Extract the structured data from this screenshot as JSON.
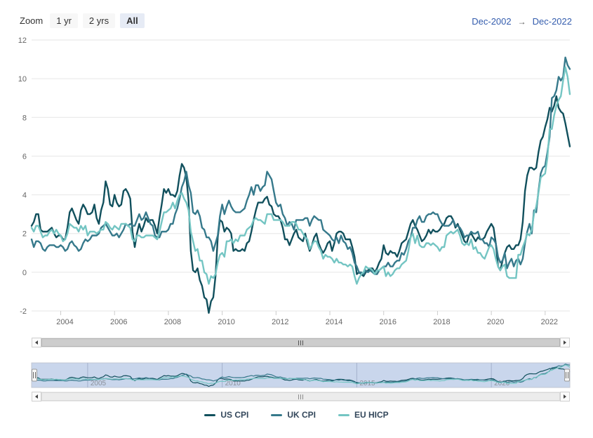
{
  "range_selector": {
    "zoom_label": "Zoom",
    "buttons": [
      {
        "label": "1 yr",
        "selected": false
      },
      {
        "label": "2 yrs",
        "selected": false
      },
      {
        "label": "All",
        "selected": true
      }
    ]
  },
  "date_range": {
    "from": "Dec-2002",
    "arrow": "→",
    "to": "Dec-2022"
  },
  "colors": {
    "us_cpi": "#11505d",
    "uk_cpi": "#36798b",
    "eu_hicp": "#74c5c3",
    "selected_button_bg": "#e6ebf5",
    "button_bg": "#f7f7f7",
    "date_link": "#335cad",
    "gridline": "#e6e6e6",
    "axis_label": "#666666",
    "navigator_mask": "#c9d6ec",
    "legend_text": "#33475b"
  },
  "chart_data": {
    "type": "line",
    "title": "",
    "xlabel": "",
    "ylabel": "",
    "x_unit": "month",
    "x_start": "Dec-2002",
    "x_end": "Dec-2022",
    "x_range_years": [
      2002.917,
      2022.917
    ],
    "ylim": [
      -2,
      12
    ],
    "yticks": [
      -2,
      0,
      2,
      4,
      6,
      8,
      10,
      12
    ],
    "xticks": [
      2004,
      2006,
      2008,
      2010,
      2012,
      2014,
      2016,
      2018,
      2020,
      2022
    ],
    "grid": "horizontal",
    "legend_position": "bottom-center",
    "navigator": {
      "xticks": [
        2005,
        2010,
        2015,
        2020
      ],
      "vmin": -2.3,
      "vmax": 11.4
    },
    "series": [
      {
        "name": "US CPI",
        "color": "#11505d",
        "values": [
          2.4,
          2.6,
          3.0,
          3.0,
          2.2,
          2.1,
          2.1,
          2.1,
          2.2,
          2.3,
          2.0,
          1.8,
          1.9,
          1.9,
          1.7,
          1.7,
          2.3,
          3.1,
          3.3,
          3.0,
          2.7,
          2.5,
          3.2,
          3.5,
          3.3,
          3.0,
          3.0,
          3.1,
          3.5,
          2.8,
          2.5,
          3.2,
          3.6,
          4.7,
          4.3,
          3.5,
          3.4,
          4.0,
          3.6,
          3.4,
          3.5,
          4.2,
          4.3,
          4.1,
          3.8,
          2.1,
          1.3,
          2.0,
          2.5,
          2.1,
          2.4,
          2.8,
          2.6,
          2.7,
          2.7,
          2.4,
          2.0,
          2.8,
          3.5,
          4.3,
          4.1,
          4.3,
          4.0,
          4.0,
          3.9,
          4.2,
          5.0,
          5.6,
          5.4,
          4.9,
          3.7,
          1.1,
          0.1,
          0.0,
          0.2,
          -0.4,
          -0.7,
          -1.3,
          -1.4,
          -2.1,
          -1.5,
          -1.3,
          -0.2,
          1.8,
          2.7,
          2.6,
          2.1,
          2.3,
          2.2,
          2.0,
          1.1,
          1.2,
          1.1,
          1.1,
          1.2,
          1.1,
          1.5,
          1.6,
          2.1,
          2.7,
          3.2,
          3.6,
          3.6,
          3.6,
          3.8,
          3.9,
          3.5,
          3.4,
          3.0,
          2.9,
          2.9,
          2.7,
          2.3,
          1.7,
          1.7,
          1.4,
          1.7,
          2.0,
          2.2,
          1.8,
          1.7,
          1.6,
          2.0,
          1.5,
          1.1,
          1.4,
          1.8,
          2.0,
          1.5,
          1.2,
          1.0,
          1.2,
          1.5,
          1.6,
          1.1,
          1.5,
          2.0,
          2.1,
          2.1,
          2.0,
          1.7,
          1.7,
          1.7,
          1.3,
          0.8,
          -0.1,
          0.0,
          -0.1,
          -0.2,
          0.0,
          0.1,
          0.2,
          0.2,
          0.0,
          0.2,
          0.5,
          0.7,
          1.4,
          1.0,
          0.9,
          1.1,
          1.0,
          1.0,
          0.8,
          1.1,
          1.5,
          1.6,
          1.7,
          2.1,
          2.5,
          2.7,
          2.4,
          2.2,
          1.9,
          1.6,
          1.7,
          1.9,
          2.2,
          2.0,
          2.2,
          2.1,
          2.1,
          2.2,
          2.4,
          2.5,
          2.8,
          2.9,
          2.9,
          2.7,
          2.3,
          2.5,
          2.2,
          1.9,
          1.6,
          1.5,
          1.9,
          2.0,
          1.8,
          1.6,
          1.8,
          1.7,
          1.7,
          1.8,
          2.1,
          2.3,
          2.5,
          2.3,
          1.5,
          0.3,
          0.1,
          0.6,
          1.0,
          1.3,
          1.4,
          1.2,
          1.2,
          1.4,
          1.4,
          1.7,
          2.6,
          4.2,
          5.0,
          5.4,
          5.4,
          5.3,
          5.4,
          6.2,
          6.8,
          7.0,
          7.5,
          7.9,
          8.5,
          8.3,
          8.6,
          9.1,
          8.5,
          8.3,
          8.2,
          7.7,
          7.1,
          6.5
        ]
      },
      {
        "name": "UK CPI",
        "color": "#36798b",
        "values": [
          1.7,
          1.3,
          1.6,
          1.6,
          1.5,
          1.2,
          1.1,
          1.3,
          1.4,
          1.4,
          1.4,
          1.3,
          1.3,
          1.4,
          1.3,
          1.1,
          1.2,
          1.5,
          1.6,
          1.4,
          1.3,
          1.1,
          1.2,
          1.5,
          1.7,
          1.6,
          1.7,
          1.9,
          1.9,
          1.9,
          2.0,
          2.3,
          2.4,
          2.5,
          2.3,
          2.1,
          1.9,
          1.9,
          2.0,
          1.8,
          2.0,
          2.2,
          2.5,
          2.4,
          2.5,
          2.4,
          2.4,
          2.7,
          3.0,
          2.7,
          2.8,
          3.1,
          2.8,
          2.5,
          2.4,
          1.9,
          1.8,
          1.8,
          2.1,
          2.1,
          2.1,
          2.2,
          2.5,
          2.5,
          3.0,
          3.3,
          3.8,
          4.4,
          4.7,
          5.2,
          4.5,
          4.1,
          3.1,
          3.0,
          3.2,
          2.9,
          2.3,
          2.2,
          1.8,
          1.8,
          1.6,
          1.1,
          1.5,
          1.9,
          2.9,
          3.5,
          3.0,
          3.4,
          3.7,
          3.4,
          3.2,
          3.1,
          3.1,
          3.1,
          3.2,
          3.3,
          3.7,
          4.0,
          4.4,
          4.0,
          4.5,
          4.5,
          4.2,
          4.4,
          4.5,
          5.2,
          5.0,
          4.8,
          4.2,
          3.6,
          3.4,
          3.5,
          3.0,
          2.8,
          2.4,
          2.6,
          2.5,
          2.2,
          2.7,
          2.7,
          2.7,
          2.7,
          2.8,
          2.8,
          2.4,
          2.7,
          2.9,
          2.8,
          2.7,
          2.7,
          2.2,
          2.1,
          2.0,
          1.9,
          1.7,
          1.6,
          1.8,
          1.5,
          1.9,
          1.6,
          1.5,
          1.2,
          1.3,
          1.0,
          0.5,
          0.3,
          0.0,
          0.0,
          -0.1,
          0.1,
          0.0,
          0.1,
          0.0,
          -0.1,
          -0.1,
          0.1,
          0.2,
          0.3,
          0.3,
          0.5,
          0.3,
          0.3,
          0.5,
          0.6,
          0.6,
          1.0,
          0.9,
          1.2,
          1.6,
          1.8,
          2.3,
          2.3,
          2.7,
          2.9,
          2.6,
          2.6,
          2.9,
          3.0,
          3.0,
          3.1,
          3.0,
          3.0,
          2.7,
          2.5,
          2.4,
          2.4,
          2.4,
          2.5,
          2.7,
          2.4,
          2.4,
          2.3,
          2.1,
          1.8,
          1.9,
          1.9,
          2.1,
          2.0,
          2.0,
          2.1,
          1.7,
          1.7,
          1.5,
          1.5,
          1.3,
          1.8,
          1.7,
          1.5,
          0.8,
          0.5,
          0.6,
          1.0,
          0.2,
          0.5,
          0.7,
          0.3,
          0.6,
          0.7,
          0.4,
          0.7,
          1.5,
          2.1,
          2.5,
          2.0,
          3.2,
          3.1,
          4.2,
          5.1,
          5.4,
          5.5,
          6.2,
          7.0,
          9.0,
          9.1,
          9.4,
          10.1,
          9.9,
          10.1,
          11.1,
          10.7,
          10.5
        ]
      },
      {
        "name": "EU HICP",
        "color": "#74c5c3",
        "values": [
          2.3,
          2.1,
          2.4,
          2.4,
          2.1,
          1.8,
          1.9,
          1.9,
          2.1,
          2.2,
          2.0,
          2.2,
          2.0,
          1.9,
          1.6,
          1.7,
          2.0,
          2.5,
          2.4,
          2.3,
          2.3,
          2.1,
          2.4,
          2.2,
          2.4,
          1.9,
          2.1,
          2.1,
          2.1,
          2.0,
          2.1,
          2.2,
          2.2,
          2.6,
          2.5,
          2.3,
          2.2,
          2.4,
          2.3,
          2.2,
          2.5,
          2.5,
          2.5,
          2.4,
          2.3,
          1.7,
          1.6,
          1.9,
          1.9,
          1.8,
          1.8,
          1.9,
          1.9,
          1.9,
          1.9,
          1.8,
          1.7,
          2.1,
          2.6,
          3.1,
          3.1,
          3.2,
          3.3,
          3.6,
          3.3,
          3.7,
          4.0,
          4.1,
          3.8,
          3.6,
          3.2,
          2.1,
          1.6,
          1.1,
          1.2,
          0.6,
          0.6,
          0.0,
          -0.1,
          -0.6,
          -0.2,
          -0.3,
          -0.1,
          0.5,
          0.9,
          1.0,
          0.8,
          1.6,
          1.6,
          1.7,
          1.5,
          1.7,
          1.6,
          1.9,
          1.9,
          1.9,
          2.2,
          2.3,
          2.4,
          2.7,
          2.8,
          2.7,
          2.7,
          2.6,
          2.5,
          3.0,
          3.0,
          3.0,
          2.7,
          2.7,
          2.7,
          2.7,
          2.6,
          2.4,
          2.4,
          2.4,
          2.6,
          2.6,
          2.5,
          2.2,
          2.2,
          2.0,
          1.8,
          1.7,
          1.2,
          1.4,
          1.6,
          1.6,
          1.3,
          1.1,
          0.7,
          0.9,
          0.8,
          0.8,
          0.7,
          0.5,
          0.7,
          0.5,
          0.5,
          0.4,
          0.4,
          0.3,
          0.4,
          0.3,
          -0.2,
          -0.6,
          -0.3,
          -0.1,
          0.0,
          0.3,
          0.2,
          0.2,
          0.1,
          -0.1,
          0.1,
          0.1,
          0.2,
          0.3,
          -0.2,
          0.0,
          -0.2,
          -0.1,
          0.1,
          0.2,
          0.2,
          0.4,
          0.5,
          0.6,
          1.1,
          1.8,
          2.0,
          1.5,
          1.9,
          1.4,
          1.3,
          1.3,
          1.5,
          1.5,
          1.4,
          1.5,
          1.4,
          1.3,
          1.1,
          1.3,
          1.3,
          1.9,
          2.0,
          2.1,
          2.0,
          2.1,
          2.2,
          1.9,
          1.5,
          1.4,
          1.5,
          1.4,
          1.7,
          1.2,
          1.3,
          1.0,
          1.0,
          0.8,
          0.7,
          1.0,
          1.3,
          1.4,
          1.2,
          0.7,
          0.3,
          0.1,
          0.3,
          0.4,
          -0.2,
          -0.3,
          -0.3,
          -0.3,
          -0.3,
          0.9,
          0.9,
          1.3,
          1.6,
          2.0,
          1.9,
          2.2,
          3.0,
          3.4,
          4.1,
          4.9,
          5.0,
          5.1,
          5.9,
          7.4,
          7.4,
          8.1,
          8.6,
          8.9,
          9.1,
          9.9,
          10.6,
          10.1,
          9.2
        ]
      }
    ]
  }
}
